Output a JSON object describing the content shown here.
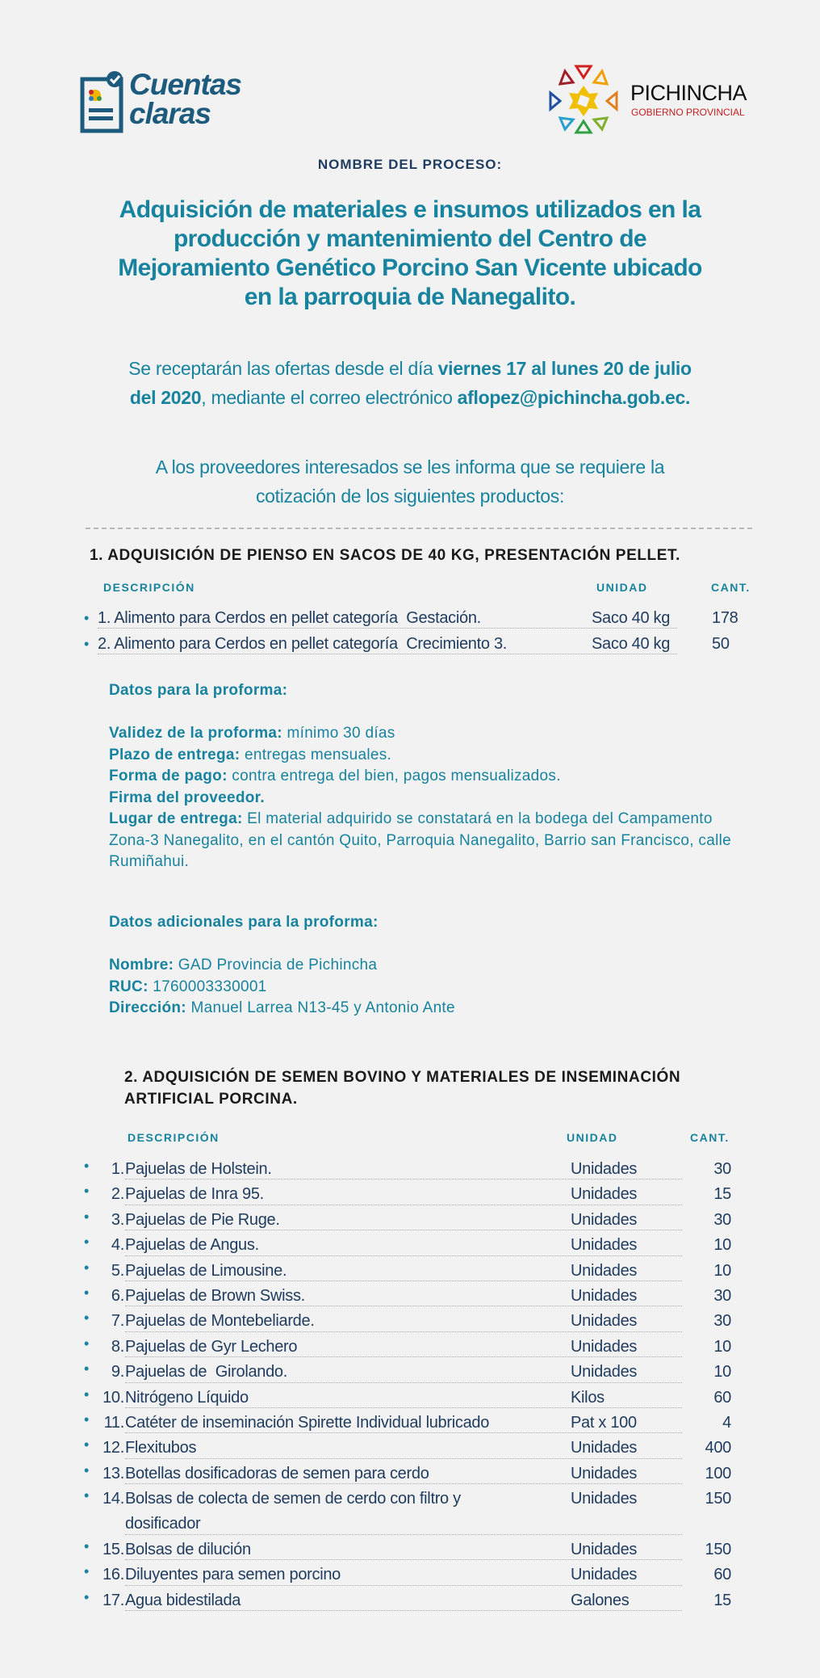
{
  "logos": {
    "left": "Cuentas claras",
    "right_name": "PICHINCHA",
    "right_sub": "GOBIERNO PROVINCIAL"
  },
  "process_label": "NOMBRE DEL PROCESO:",
  "title_lines": [
    "Adquisición de materiales e insumos utilizados en la",
    "producción y mantenimiento del Centro de",
    "Mejoramiento Genético Porcino San Vicente ubicado",
    "en la parroquia de Nanegalito."
  ],
  "intro": {
    "t1": "Se receptarán las ofertas desde el día ",
    "b1": "viernes 17 al lunes 20 de julio",
    "b2": "del 2020",
    ",t2": "",
    "t2": ", mediante el correo electrónico ",
    "email": "aflopez@pichincha.gob.ec."
  },
  "request_lines": [
    "A los proveedores interesados se les informa que se requiere la",
    "cotización de los siguientes productos:"
  ],
  "section1": {
    "heading": "1. ADQUISICIÓN DE PIENSO EN SACOS DE 40 KG, PRESENTACIÓN PELLET.",
    "columns": [
      "DESCRIPCIÓN",
      "UNIDAD",
      "CANT."
    ],
    "rows": [
      {
        "desc": "1. Alimento para Cerdos en pellet categoría  Gestación.",
        "unit": "Saco 40 kg",
        "qty": "178"
      },
      {
        "desc": "2. Alimento para Cerdos en pellet categoría  Crecimiento 3.",
        "unit": "Saco 40 kg",
        "qty": "50"
      }
    ],
    "proforma_title": "Datos para la proforma:",
    "proforma": [
      {
        "label": "Validez de la proforma:",
        "value": " mínimo 30 días"
      },
      {
        "label": "Plazo de entrega:",
        "value": " entregas mensuales."
      },
      {
        "label": "Forma de pago:",
        "value": " contra entrega del bien, pagos mensualizados."
      },
      {
        "label": "Firma del proveedor.",
        "value": ""
      },
      {
        "label": "Lugar de entrega:",
        "value": " El material adquirido se constatará en la bodega del Campamento Zona-3 Nanegalito, en el cantón Quito, Parroquia Nanegalito, Barrio san Francisco, calle Rumiñahui."
      }
    ],
    "additional_title": "Datos adicionales para la proforma:",
    "additional": [
      {
        "label": "Nombre:",
        "value": " GAD Provincia de Pichincha"
      },
      {
        "label": "RUC:",
        "value": " 1760003330001"
      },
      {
        "label": "Dirección:",
        "value": " Manuel Larrea N13-45 y Antonio Ante"
      }
    ]
  },
  "section2": {
    "heading_lines": [
      "2. ADQUISICIÓN DE SEMEN BOVINO Y MATERIALES DE INSEMINACIÓN",
      "ARTIFICIAL PORCINA."
    ],
    "columns": [
      "DESCRIPCIÓN",
      "UNIDAD",
      "CANT."
    ],
    "rows": [
      {
        "n": "1.",
        "desc": "Pajuelas de Holstein.",
        "unit": "Unidades",
        "qty": "30"
      },
      {
        "n": "2.",
        "desc": "Pajuelas de Inra 95.",
        "unit": "Unidades",
        "qty": "15"
      },
      {
        "n": "3.",
        "desc": "Pajuelas de Pie Ruge.",
        "unit": "Unidades",
        "qty": "30"
      },
      {
        "n": "4.",
        "desc": "Pajuelas de Angus.",
        "unit": "Unidades",
        "qty": "10"
      },
      {
        "n": "5.",
        "desc": "Pajuelas de Limousine.",
        "unit": "Unidades",
        "qty": "10"
      },
      {
        "n": "6.",
        "desc": "Pajuelas de Brown Swiss.",
        "unit": "Unidades",
        "qty": "30"
      },
      {
        "n": "7.",
        "desc": "Pajuelas de Montebeliarde.",
        "unit": "Unidades",
        "qty": "30"
      },
      {
        "n": "8.",
        "desc": "Pajuelas de Gyr Lechero",
        "unit": "Unidades",
        "qty": "10"
      },
      {
        "n": "9.",
        "desc": "Pajuelas de  Girolando.",
        "unit": "Unidades",
        "qty": "10"
      },
      {
        "n": "10.",
        "desc": "Nitrógeno Líquido",
        "unit": "Kilos",
        "qty": "60"
      },
      {
        "n": "11.",
        "desc": "Catéter de inseminación Spirette Individual lubricado",
        "unit": "Pat x 100",
        "qty": "4"
      },
      {
        "n": "12.",
        "desc": "Flexitubos",
        "unit": "Unidades",
        "qty": "400"
      },
      {
        "n": "13.",
        "desc": "Botellas dosificadoras de semen para cerdo",
        "unit": "Unidades",
        "qty": "100"
      },
      {
        "n": "14.",
        "desc": "Bolsas de colecta de semen de cerdo con filtro y",
        "desc2": "dosificador",
        "unit": "Unidades",
        "qty": "150"
      },
      {
        "n": "15.",
        "desc": "Bolsas de dilución",
        "unit": "Unidades",
        "qty": "150"
      },
      {
        "n": "16.",
        "desc": "Diluyentes para semen porcino",
        "unit": "Unidades",
        "qty": "60"
      },
      {
        "n": "17.",
        "desc": "Agua bidestilada",
        "unit": "Galones",
        "qty": "15"
      }
    ]
  }
}
